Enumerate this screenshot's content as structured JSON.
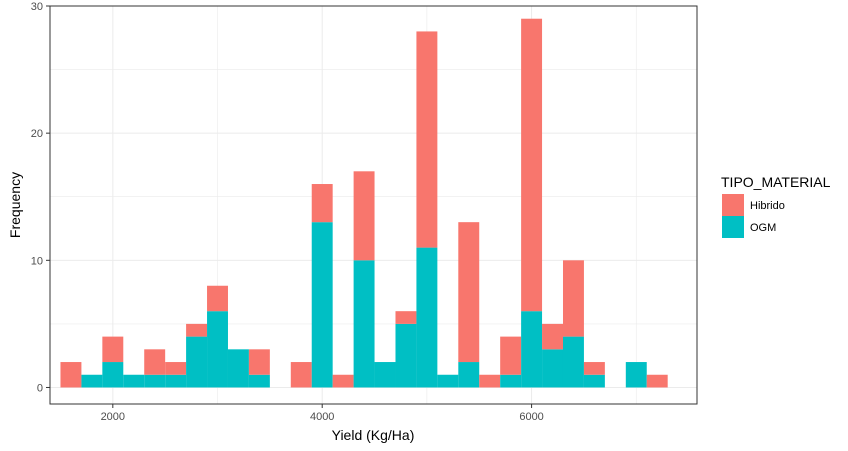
{
  "chart_data": {
    "type": "bar",
    "stacked": true,
    "xlabel": "Yield (Kg/Ha)",
    "ylabel": "Frequency",
    "xlim": [
      1400,
      7580
    ],
    "ylim": [
      -1.3,
      30
    ],
    "xticks": [
      2000,
      4000,
      6000
    ],
    "yticks": [
      0,
      10,
      20,
      30
    ],
    "grid": true,
    "legend": {
      "title": "TIPO_MATERIAL",
      "placement": "right"
    },
    "bin_edges": [
      1500,
      1700,
      1900,
      2100,
      2300,
      2500,
      2700,
      2900,
      3100,
      3300,
      3500,
      3700,
      3900,
      4100,
      4300,
      4500,
      4700,
      4900,
      5100,
      5300,
      5500,
      5700,
      5900,
      6100,
      6300,
      6500,
      6700,
      6900,
      7100,
      7300
    ],
    "series": [
      {
        "name": "OGM",
        "color": "#00BFC4",
        "values": [
          0,
          1,
          2,
          1,
          1,
          1,
          4,
          6,
          3,
          1,
          0,
          0,
          13,
          0,
          10,
          2,
          5,
          11,
          1,
          2,
          0,
          1,
          6,
          3,
          4,
          1,
          0,
          2,
          0
        ]
      },
      {
        "name": "Hibrido",
        "color": "#F8766D",
        "values": [
          2,
          0,
          2,
          0,
          2,
          1,
          1,
          2,
          0,
          2,
          0,
          2,
          3,
          1,
          7,
          0,
          1,
          17,
          0,
          11,
          1,
          3,
          23,
          2,
          6,
          1,
          0,
          0,
          1
        ]
      }
    ]
  }
}
